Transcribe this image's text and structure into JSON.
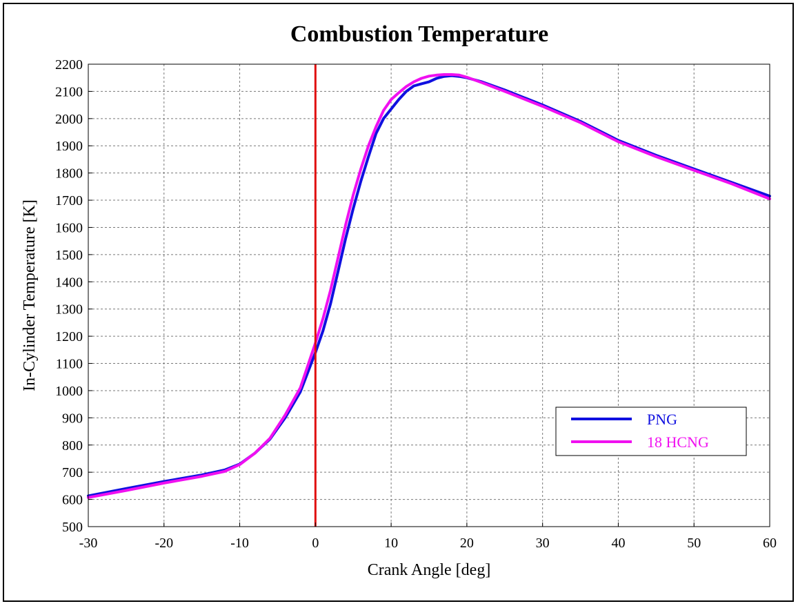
{
  "chart_data": {
    "type": "line",
    "title": "Combustion Temperature",
    "xlabel": "Crank Angle [deg]",
    "ylabel": "In-Cylinder Temperature [K]",
    "xlim": [
      -30,
      60
    ],
    "ylim": [
      500,
      2200
    ],
    "xticks": [
      -30,
      -20,
      -10,
      0,
      10,
      20,
      30,
      40,
      50,
      60
    ],
    "yticks": [
      500,
      600,
      700,
      800,
      900,
      1000,
      1100,
      1200,
      1300,
      1400,
      1500,
      1600,
      1700,
      1800,
      1900,
      2000,
      2100,
      2200
    ],
    "grid": true,
    "legend_position": "lower-right",
    "vertical_marker": {
      "x": 0,
      "color": "#e01010"
    },
    "series": [
      {
        "name": "PNG",
        "color": "#1010e0",
        "x": [
          -30,
          -25,
          -20,
          -15,
          -12,
          -10,
          -8,
          -6,
          -4,
          -2,
          0,
          1,
          2,
          3,
          4,
          5,
          6,
          7,
          8,
          9,
          10,
          11,
          12,
          13,
          14,
          15,
          16,
          17,
          18,
          19,
          20,
          22,
          25,
          30,
          35,
          40,
          45,
          50,
          55,
          60
        ],
        "y": [
          613,
          640,
          666,
          690,
          708,
          730,
          770,
          822,
          900,
          995,
          1140,
          1220,
          1320,
          1440,
          1560,
          1670,
          1770,
          1860,
          1945,
          2000,
          2035,
          2070,
          2100,
          2120,
          2128,
          2135,
          2148,
          2155,
          2158,
          2155,
          2150,
          2135,
          2105,
          2050,
          1990,
          1920,
          1865,
          1815,
          1765,
          1715
        ]
      },
      {
        "name": "18 HCNG",
        "color": "#f010f0",
        "x": [
          -30,
          -25,
          -20,
          -15,
          -12,
          -10,
          -8,
          -6,
          -4,
          -2,
          0,
          1,
          2,
          3,
          4,
          5,
          6,
          7,
          8,
          9,
          10,
          11,
          12,
          13,
          14,
          15,
          16,
          17,
          18,
          19,
          20,
          22,
          25,
          30,
          35,
          40,
          45,
          50,
          55,
          60
        ],
        "y": [
          607,
          633,
          660,
          685,
          703,
          728,
          770,
          825,
          910,
          1010,
          1175,
          1265,
          1370,
          1490,
          1610,
          1720,
          1815,
          1900,
          1970,
          2030,
          2070,
          2095,
          2118,
          2135,
          2148,
          2156,
          2160,
          2162,
          2162,
          2160,
          2152,
          2132,
          2100,
          2045,
          1985,
          1915,
          1860,
          1810,
          1760,
          1705
        ]
      }
    ]
  }
}
